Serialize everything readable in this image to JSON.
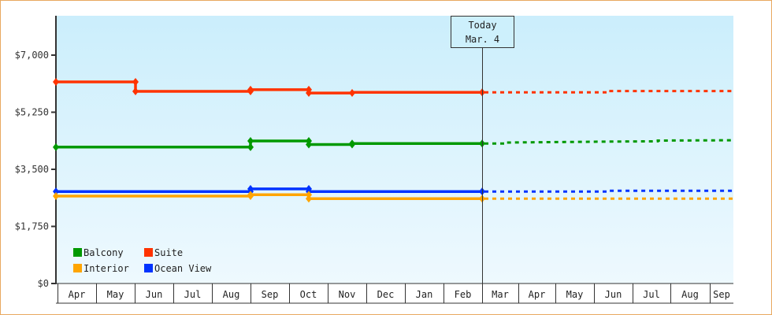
{
  "chart_data": {
    "type": "line",
    "title": "",
    "xlabel": "",
    "ylabel": "",
    "ylim": [
      0,
      7000
    ],
    "y_ticks": [
      "$0",
      "$1,750",
      "$3,500",
      "$5,250",
      "$7,000"
    ],
    "y_tick_values": [
      0,
      1750,
      3500,
      5250,
      7000
    ],
    "categories": [
      "Apr",
      "May",
      "Jun",
      "Jul",
      "Aug",
      "Sep",
      "Oct",
      "Nov",
      "Dec",
      "Jan",
      "Feb",
      "Mar",
      "Apr",
      "May",
      "Jun",
      "Jul",
      "Aug",
      "Sep"
    ],
    "today_marker": {
      "line1": "Today",
      "line2": "Mar. 4"
    },
    "legend": [
      {
        "name": "Balcony",
        "color": "#009900"
      },
      {
        "name": "Suite",
        "color": "#ff3300"
      },
      {
        "name": "Interior",
        "color": "#ffa500"
      },
      {
        "name": "Ocean View",
        "color": "#0033ff"
      }
    ],
    "series": [
      {
        "name": "Suite",
        "color": "#ff3300",
        "historical": [
          [
            71,
            6180
          ],
          [
            172,
            6180
          ],
          [
            172,
            5890
          ],
          [
            318,
            5890
          ],
          [
            318,
            5940
          ],
          [
            392,
            5940
          ],
          [
            392,
            5840
          ],
          [
            447,
            5840
          ],
          [
            447,
            5860
          ],
          [
            612,
            5860
          ]
        ],
        "points": [
          [
            71,
            6180
          ],
          [
            172,
            6180
          ],
          [
            172,
            5890
          ],
          [
            318,
            5890
          ],
          [
            318,
            5940
          ],
          [
            392,
            5940
          ],
          [
            392,
            5840
          ],
          [
            447,
            5840
          ],
          [
            612,
            5860
          ]
        ],
        "forecast": [
          [
            612,
            5860
          ],
          [
            772,
            5860
          ],
          [
            772,
            5900
          ],
          [
            930,
            5900
          ]
        ]
      },
      {
        "name": "Balcony",
        "color": "#009900",
        "historical": [
          [
            71,
            4180
          ],
          [
            318,
            4180
          ],
          [
            318,
            4370
          ],
          [
            392,
            4370
          ],
          [
            392,
            4260
          ],
          [
            447,
            4260
          ],
          [
            447,
            4290
          ],
          [
            612,
            4290
          ]
        ],
        "points": [
          [
            71,
            4180
          ],
          [
            318,
            4180
          ],
          [
            318,
            4370
          ],
          [
            392,
            4370
          ],
          [
            392,
            4260
          ],
          [
            447,
            4260
          ],
          [
            447,
            4290
          ],
          [
            612,
            4290
          ]
        ],
        "forecast": [
          [
            612,
            4290
          ],
          [
            643,
            4290
          ],
          [
            643,
            4320
          ],
          [
            772,
            4350
          ],
          [
            835,
            4360
          ],
          [
            835,
            4380
          ],
          [
            930,
            4390
          ]
        ]
      },
      {
        "name": "Ocean View",
        "color": "#0033ff",
        "historical": [
          [
            71,
            2820
          ],
          [
            318,
            2820
          ],
          [
            318,
            2900
          ],
          [
            392,
            2900
          ],
          [
            392,
            2820
          ],
          [
            612,
            2820
          ]
        ],
        "points": [
          [
            71,
            2820
          ],
          [
            318,
            2820
          ],
          [
            318,
            2900
          ],
          [
            392,
            2900
          ],
          [
            392,
            2820
          ],
          [
            612,
            2820
          ]
        ],
        "forecast": [
          [
            612,
            2820
          ],
          [
            772,
            2820
          ],
          [
            772,
            2840
          ],
          [
            930,
            2840
          ]
        ]
      },
      {
        "name": "Interior",
        "color": "#ffa500",
        "historical": [
          [
            71,
            2680
          ],
          [
            318,
            2680
          ],
          [
            318,
            2720
          ],
          [
            392,
            2720
          ],
          [
            392,
            2600
          ],
          [
            612,
            2600
          ]
        ],
        "points": [
          [
            71,
            2680
          ],
          [
            318,
            2680
          ],
          [
            318,
            2720
          ],
          [
            392,
            2720
          ],
          [
            392,
            2600
          ],
          [
            612,
            2600
          ]
        ],
        "forecast": [
          [
            612,
            2600
          ],
          [
            930,
            2600
          ]
        ]
      }
    ]
  }
}
